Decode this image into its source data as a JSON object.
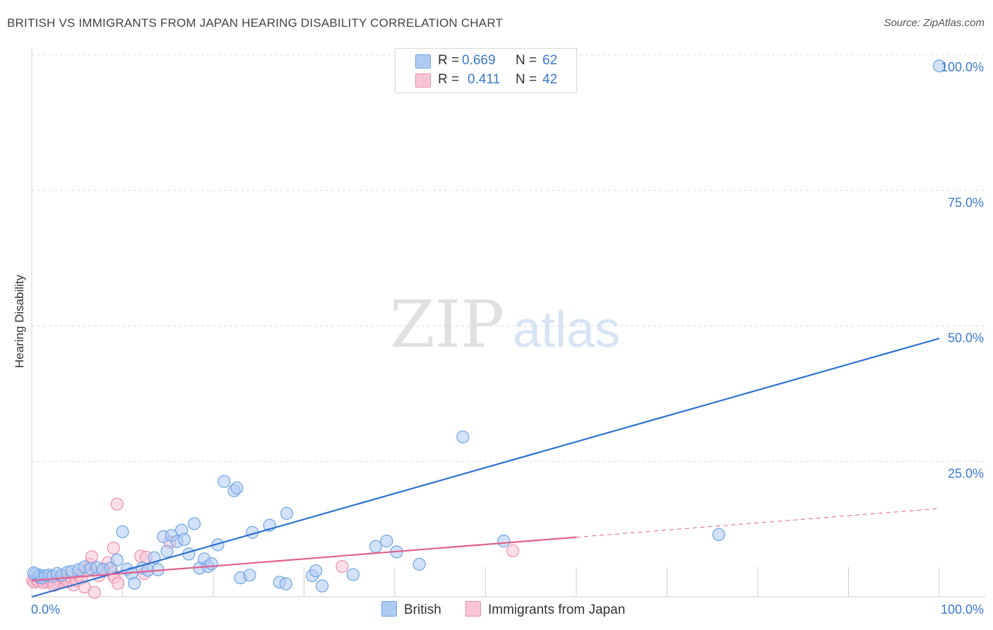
{
  "title": "BRITISH VS IMMIGRANTS FROM JAPAN HEARING DISABILITY CORRELATION CHART",
  "source": "Source: ZipAtlas.com",
  "watermark": {
    "zip": "ZIP",
    "atlas": "atlas"
  },
  "legend": {
    "rows": [
      {
        "r_label": "R =",
        "r_value": "0.669",
        "n_label": "N =",
        "n_value": "62"
      },
      {
        "r_label": "R =",
        "r_value": "0.411",
        "n_label": "N =",
        "n_value": "42"
      }
    ]
  },
  "bottom_legend": {
    "british": "British",
    "japan": "Immigrants from Japan"
  },
  "chart_data": {
    "type": "scatter",
    "title": "BRITISH VS IMMIGRANTS FROM JAPAN HEARING DISABILITY CORRELATION CHART",
    "xlabel": "",
    "ylabel": "Hearing Disability",
    "xlim": [
      0,
      100
    ],
    "ylim": [
      0,
      100
    ],
    "x_tick_labels": [
      {
        "value": 0,
        "label": "0.0%"
      },
      {
        "value": 100,
        "label": "100.0%"
      }
    ],
    "y_tick_labels": [
      {
        "value": 25,
        "label": "25.0%"
      },
      {
        "value": 50,
        "label": "50.0%"
      },
      {
        "value": 75,
        "label": "75.0%"
      },
      {
        "value": 100,
        "label": "100.0%"
      }
    ],
    "grid": true,
    "legend_position": "top-center",
    "series": [
      {
        "name": "British",
        "color": "#6fa3e6",
        "fill": "#aecbf3",
        "R": 0.669,
        "N": 62,
        "trend": {
          "x": [
            0,
            100
          ],
          "y": [
            0,
            47.7
          ],
          "color": "#2d72d0"
        },
        "points": [
          [
            0.4,
            4.2
          ],
          [
            0.7,
            3.8
          ],
          [
            0.9,
            4.0
          ],
          [
            1.1,
            3.5
          ],
          [
            1.5,
            3.9
          ],
          [
            1.9,
            4.0
          ],
          [
            2.3,
            3.8
          ],
          [
            2.8,
            4.3
          ],
          [
            3.3,
            4.0
          ],
          [
            3.9,
            4.5
          ],
          [
            4.4,
            4.7
          ],
          [
            5.2,
            5.0
          ],
          [
            5.8,
            5.5
          ],
          [
            6.5,
            5.2
          ],
          [
            7.2,
            5.4
          ],
          [
            7.8,
            5.0
          ],
          [
            8.7,
            5.3
          ],
          [
            9.4,
            6.8
          ],
          [
            10.0,
            12.0
          ],
          [
            10.5,
            5.1
          ],
          [
            11.0,
            4.3
          ],
          [
            11.3,
            2.5
          ],
          [
            12.2,
            5.3
          ],
          [
            12.8,
            4.9
          ],
          [
            13.5,
            7.2
          ],
          [
            13.9,
            5.0
          ],
          [
            14.5,
            11.1
          ],
          [
            14.9,
            8.4
          ],
          [
            15.4,
            11.3
          ],
          [
            16.0,
            10.2
          ],
          [
            16.5,
            12.3
          ],
          [
            16.8,
            10.6
          ],
          [
            17.3,
            7.9
          ],
          [
            17.9,
            13.5
          ],
          [
            18.5,
            5.3
          ],
          [
            19.0,
            7.0
          ],
          [
            19.4,
            5.6
          ],
          [
            19.8,
            6.1
          ],
          [
            20.5,
            9.6
          ],
          [
            21.2,
            21.3
          ],
          [
            22.3,
            19.6
          ],
          [
            22.6,
            20.1
          ],
          [
            23.0,
            3.5
          ],
          [
            24.0,
            4.0
          ],
          [
            24.3,
            11.9
          ],
          [
            26.2,
            13.2
          ],
          [
            27.3,
            2.7
          ],
          [
            28.0,
            2.4
          ],
          [
            28.1,
            15.4
          ],
          [
            30.9,
            3.9
          ],
          [
            31.3,
            4.8
          ],
          [
            32.0,
            2.0
          ],
          [
            35.4,
            4.1
          ],
          [
            37.9,
            9.3
          ],
          [
            39.1,
            10.3
          ],
          [
            40.2,
            8.3
          ],
          [
            42.7,
            6.0
          ],
          [
            47.5,
            29.5
          ],
          [
            52.0,
            10.3
          ],
          [
            75.7,
            11.5
          ],
          [
            100.0,
            98.0
          ],
          [
            0.2,
            4.4
          ]
        ]
      },
      {
        "name": "Immigrants from Japan",
        "color": "#ee8fb0",
        "fill": "#f8c4d6",
        "R": 0.411,
        "N": 42,
        "trend": {
          "x": [
            0,
            60
          ],
          "y": [
            3.0,
            11.0
          ],
          "dashed_to": [
            100,
            16.3
          ],
          "color": "#e0618f"
        },
        "points": [
          [
            0.1,
            3.0
          ],
          [
            0.3,
            2.7
          ],
          [
            0.5,
            3.3
          ],
          [
            0.7,
            2.9
          ],
          [
            0.9,
            3.6
          ],
          [
            1.1,
            3.1
          ],
          [
            1.3,
            2.6
          ],
          [
            1.5,
            3.4
          ],
          [
            1.7,
            2.8
          ],
          [
            2.0,
            3.5
          ],
          [
            2.2,
            3.0
          ],
          [
            2.5,
            2.6
          ],
          [
            2.8,
            3.3
          ],
          [
            3.1,
            2.9
          ],
          [
            3.4,
            3.7
          ],
          [
            3.7,
            3.2
          ],
          [
            4.0,
            2.8
          ],
          [
            4.3,
            3.6
          ],
          [
            4.6,
            2.2
          ],
          [
            4.9,
            3.0
          ],
          [
            5.2,
            4.0
          ],
          [
            5.5,
            3.4
          ],
          [
            5.8,
            1.8
          ],
          [
            6.1,
            4.9
          ],
          [
            6.4,
            6.0
          ],
          [
            6.6,
            7.4
          ],
          [
            6.9,
            0.8
          ],
          [
            7.4,
            3.9
          ],
          [
            7.9,
            5.1
          ],
          [
            8.4,
            6.3
          ],
          [
            8.9,
            4.3
          ],
          [
            9.1,
            3.6
          ],
          [
            9.5,
            2.5
          ],
          [
            9.4,
            17.1
          ],
          [
            9.0,
            9.0
          ],
          [
            12.0,
            7.5
          ],
          [
            12.6,
            7.3
          ],
          [
            12.4,
            4.3
          ],
          [
            15.2,
            10.1
          ],
          [
            34.2,
            5.6
          ],
          [
            53.0,
            8.5
          ],
          [
            2.4,
            2.1
          ]
        ]
      }
    ]
  }
}
